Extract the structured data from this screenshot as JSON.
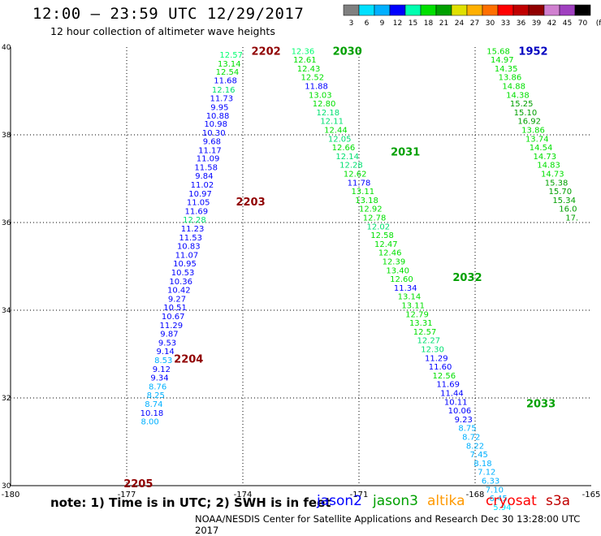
{
  "title": "12:00 – 23:59 UTC 12/29/2017",
  "subtitle": "12 hour collection of altimeter wave heights",
  "colorbar": {
    "labels": [
      "3",
      "6",
      "9",
      "12",
      "15",
      "18",
      "21",
      "24",
      "27",
      "30",
      "33",
      "36",
      "39",
      "42",
      "45",
      "70",
      "(ft)"
    ],
    "colors": [
      "#808080",
      "#00e0ff",
      "#00b0ff",
      "#0000ff",
      "#00ffb0",
      "#00e000",
      "#00a000",
      "#e0e000",
      "#ffb000",
      "#ff7000",
      "#ff0000",
      "#c00000",
      "#900000",
      "#d080d0",
      "#a040c0",
      "#000000"
    ]
  },
  "note": "note:  1) Time is in UTC;  2) SWH is in feet",
  "satellites": [
    {
      "name": "jason2",
      "color": "#0000ff"
    },
    {
      "name": "jason3",
      "color": "#00a000"
    },
    {
      "name": "altika",
      "color": "#ff9900"
    },
    {
      "name": "cryosat",
      "color": "#ff0000"
    },
    {
      "name": "s3a",
      "color": "#c00000"
    }
  ],
  "credit": "NOAA/NESDIS Center for Satellite Applications and Research   Dec 30 13:28:00 UTC 2017",
  "chart_data": {
    "type": "scatter",
    "xlim": [
      -180,
      -165
    ],
    "ylim": [
      30,
      40
    ],
    "x_ticks": [
      "-180",
      "-177",
      "-174",
      "-171",
      "-168",
      "-165"
    ],
    "y_ticks": [
      "30",
      "32",
      "34",
      "36",
      "38",
      "40"
    ],
    "grid": true,
    "track_labels": [
      {
        "text": "2202",
        "x": -173.4,
        "y": 39.92,
        "color": "#900000"
      },
      {
        "text": "2203",
        "x": -173.8,
        "y": 36.48,
        "color": "#900000"
      },
      {
        "text": "2204",
        "x": -175.4,
        "y": 32.9,
        "color": "#900000"
      },
      {
        "text": "2205",
        "x": -176.7,
        "y": 30.06,
        "color": "#900000"
      },
      {
        "text": "2030",
        "x": -171.3,
        "y": 39.92,
        "color": "#00a000"
      },
      {
        "text": "2031",
        "x": -169.8,
        "y": 37.62,
        "color": "#00a000"
      },
      {
        "text": "2032",
        "x": -168.2,
        "y": 34.76,
        "color": "#00a000"
      },
      {
        "text": "2033",
        "x": -166.3,
        "y": 31.88,
        "color": "#00a000"
      },
      {
        "text": "1952",
        "x": -166.5,
        "y": 39.92,
        "color": "#0000c0"
      }
    ],
    "series": [
      {
        "name": "jason2",
        "points": [
          {
            "x": -174.3,
            "y": 39.83,
            "v": "12.57",
            "c": "#00ff70"
          },
          {
            "x": -174.35,
            "y": 39.63,
            "v": "13.14",
            "c": "#00e000"
          },
          {
            "x": -174.4,
            "y": 39.44,
            "v": "12.54",
            "c": "#00e000"
          },
          {
            "x": -174.45,
            "y": 39.25,
            "v": "11.68",
            "c": "#0000ff"
          },
          {
            "x": -174.5,
            "y": 39.04,
            "v": "12.16",
            "c": "#00e070"
          },
          {
            "x": -174.55,
            "y": 38.84,
            "v": "11.73",
            "c": "#0000ff"
          },
          {
            "x": -174.6,
            "y": 38.64,
            "v": "9.95",
            "c": "#0000ff"
          },
          {
            "x": -174.65,
            "y": 38.44,
            "v": "10.88",
            "c": "#0000ff"
          },
          {
            "x": -174.7,
            "y": 38.26,
            "v": "10.98",
            "c": "#0000ff"
          },
          {
            "x": -174.75,
            "y": 38.06,
            "v": "10.30",
            "c": "#0000ff"
          },
          {
            "x": -174.8,
            "y": 37.86,
            "v": "9.68",
            "c": "#0000ff"
          },
          {
            "x": -174.85,
            "y": 37.66,
            "v": "11.17",
            "c": "#0000ff"
          },
          {
            "x": -174.9,
            "y": 37.47,
            "v": "11.09",
            "c": "#0000ff"
          },
          {
            "x": -174.95,
            "y": 37.27,
            "v": "11.58",
            "c": "#0000ff"
          },
          {
            "x": -175.0,
            "y": 37.07,
            "v": "9.84",
            "c": "#0000ff"
          },
          {
            "x": -175.05,
            "y": 36.87,
            "v": "11.02",
            "c": "#0000ff"
          },
          {
            "x": -175.1,
            "y": 36.67,
            "v": "10.97",
            "c": "#0000ff"
          },
          {
            "x": -175.15,
            "y": 36.47,
            "v": "11.05",
            "c": "#0000ff"
          },
          {
            "x": -175.2,
            "y": 36.27,
            "v": "11.69",
            "c": "#0000ff"
          },
          {
            "x": -175.25,
            "y": 36.07,
            "v": "12.28",
            "c": "#00e070"
          },
          {
            "x": -175.3,
            "y": 35.87,
            "v": "11.23",
            "c": "#0000ff"
          },
          {
            "x": -175.35,
            "y": 35.67,
            "v": "11.53",
            "c": "#0000ff"
          },
          {
            "x": -175.4,
            "y": 35.47,
            "v": "10.83",
            "c": "#0000ff"
          },
          {
            "x": -175.45,
            "y": 35.27,
            "v": "11.07",
            "c": "#0000ff"
          },
          {
            "x": -175.5,
            "y": 35.07,
            "v": "10.95",
            "c": "#0000ff"
          },
          {
            "x": -175.55,
            "y": 34.87,
            "v": "10.53",
            "c": "#0000ff"
          },
          {
            "x": -175.6,
            "y": 34.67,
            "v": "10.36",
            "c": "#0000ff"
          },
          {
            "x": -175.65,
            "y": 34.47,
            "v": "10.42",
            "c": "#0000ff"
          },
          {
            "x": -175.7,
            "y": 34.27,
            "v": "9.27",
            "c": "#0000ff"
          },
          {
            "x": -175.75,
            "y": 34.07,
            "v": "10.51",
            "c": "#0000ff"
          },
          {
            "x": -175.8,
            "y": 33.87,
            "v": "10.67",
            "c": "#0000ff"
          },
          {
            "x": -175.85,
            "y": 33.67,
            "v": "11.29",
            "c": "#0000ff"
          },
          {
            "x": -175.9,
            "y": 33.47,
            "v": "9.87",
            "c": "#0000ff"
          },
          {
            "x": -175.95,
            "y": 33.27,
            "v": "9.53",
            "c": "#0000ff"
          },
          {
            "x": -176.0,
            "y": 33.07,
            "v": "9.14",
            "c": "#0000ff"
          },
          {
            "x": -176.05,
            "y": 32.87,
            "v": "8.53",
            "c": "#00b0ff"
          },
          {
            "x": -176.1,
            "y": 32.67,
            "v": "9.12",
            "c": "#0000ff"
          },
          {
            "x": -176.15,
            "y": 32.47,
            "v": "9.34",
            "c": "#0000ff"
          },
          {
            "x": -176.2,
            "y": 32.27,
            "v": "8.76",
            "c": "#00b0ff"
          },
          {
            "x": -176.25,
            "y": 32.07,
            "v": "8.25",
            "c": "#00b0ff"
          },
          {
            "x": -176.3,
            "y": 31.87,
            "v": "8.74",
            "c": "#00b0ff"
          },
          {
            "x": -176.35,
            "y": 31.67,
            "v": "10.18",
            "c": "#0000ff"
          },
          {
            "x": -176.4,
            "y": 31.47,
            "v": "8.00",
            "c": "#00b0ff"
          }
        ]
      },
      {
        "name": "jason3",
        "points": [
          {
            "x": -172.45,
            "y": 39.92,
            "v": "12.36",
            "c": "#00ff70"
          },
          {
            "x": -172.4,
            "y": 39.72,
            "v": "12.61",
            "c": "#00e000"
          },
          {
            "x": -172.3,
            "y": 39.52,
            "v": "12.43",
            "c": "#00e000"
          },
          {
            "x": -172.2,
            "y": 39.32,
            "v": "12.52",
            "c": "#00e000"
          },
          {
            "x": -172.1,
            "y": 39.12,
            "v": "11.88",
            "c": "#0000ff"
          },
          {
            "x": -172.0,
            "y": 38.92,
            "v": "13.03",
            "c": "#00e000"
          },
          {
            "x": -171.9,
            "y": 38.72,
            "v": "12.80",
            "c": "#00e000"
          },
          {
            "x": -171.8,
            "y": 38.52,
            "v": "12.18",
            "c": "#00e070"
          },
          {
            "x": -171.7,
            "y": 38.32,
            "v": "12.11",
            "c": "#00e070"
          },
          {
            "x": -171.6,
            "y": 38.12,
            "v": "12.44",
            "c": "#00e000"
          },
          {
            "x": -171.5,
            "y": 37.92,
            "v": "12.05",
            "c": "#00e070"
          },
          {
            "x": -171.4,
            "y": 37.72,
            "v": "12.66",
            "c": "#00e000"
          },
          {
            "x": -171.3,
            "y": 37.52,
            "v": "12.14",
            "c": "#00e070"
          },
          {
            "x": -171.2,
            "y": 37.32,
            "v": "12.28",
            "c": "#00e070"
          },
          {
            "x": -171.1,
            "y": 37.12,
            "v": "12.62",
            "c": "#00e000"
          },
          {
            "x": -171.0,
            "y": 36.92,
            "v": "11.78",
            "c": "#0000ff"
          },
          {
            "x": -170.9,
            "y": 36.72,
            "v": "13.11",
            "c": "#00e000"
          },
          {
            "x": -170.8,
            "y": 36.52,
            "v": "13.18",
            "c": "#00e000"
          },
          {
            "x": -170.7,
            "y": 36.32,
            "v": "12.92",
            "c": "#00e000"
          },
          {
            "x": -170.6,
            "y": 36.12,
            "v": "12.78",
            "c": "#00e000"
          },
          {
            "x": -170.5,
            "y": 35.92,
            "v": "12.02",
            "c": "#00e070"
          },
          {
            "x": -170.4,
            "y": 35.72,
            "v": "12.58",
            "c": "#00e000"
          },
          {
            "x": -170.3,
            "y": 35.52,
            "v": "12.47",
            "c": "#00e000"
          },
          {
            "x": -170.2,
            "y": 35.32,
            "v": "12.46",
            "c": "#00e000"
          },
          {
            "x": -170.1,
            "y": 35.12,
            "v": "12.39",
            "c": "#00e000"
          },
          {
            "x": -170.0,
            "y": 34.92,
            "v": "13.40",
            "c": "#00e000"
          },
          {
            "x": -169.9,
            "y": 34.72,
            "v": "12.60",
            "c": "#00e000"
          },
          {
            "x": -169.8,
            "y": 34.52,
            "v": "11.34",
            "c": "#0000ff"
          },
          {
            "x": -169.7,
            "y": 34.32,
            "v": "13.14",
            "c": "#00e000"
          },
          {
            "x": -169.6,
            "y": 34.12,
            "v": "13.11",
            "c": "#00e000"
          },
          {
            "x": -169.5,
            "y": 33.92,
            "v": "12.79",
            "c": "#00e000"
          },
          {
            "x": -169.4,
            "y": 33.72,
            "v": "13.31",
            "c": "#00e000"
          },
          {
            "x": -169.3,
            "y": 33.52,
            "v": "12.57",
            "c": "#00e000"
          },
          {
            "x": -169.2,
            "y": 33.32,
            "v": "12.27",
            "c": "#00e070"
          },
          {
            "x": -169.1,
            "y": 33.12,
            "v": "12.30",
            "c": "#00e070"
          },
          {
            "x": -169.0,
            "y": 32.92,
            "v": "11.29",
            "c": "#0000ff"
          },
          {
            "x": -168.9,
            "y": 32.72,
            "v": "11.60",
            "c": "#0000ff"
          },
          {
            "x": -168.8,
            "y": 32.52,
            "v": "12.56",
            "c": "#00e000"
          },
          {
            "x": -168.7,
            "y": 32.32,
            "v": "11.69",
            "c": "#0000ff"
          },
          {
            "x": -168.6,
            "y": 32.12,
            "v": "11.44",
            "c": "#0000ff"
          },
          {
            "x": -168.5,
            "y": 31.92,
            "v": "10.11",
            "c": "#0000ff"
          },
          {
            "x": -168.4,
            "y": 31.72,
            "v": "10.06",
            "c": "#0000ff"
          },
          {
            "x": -168.3,
            "y": 31.52,
            "v": "9.23",
            "c": "#0000ff"
          },
          {
            "x": -168.2,
            "y": 31.32,
            "v": "8.75",
            "c": "#00b0ff"
          },
          {
            "x": -168.1,
            "y": 31.12,
            "v": "8.72",
            "c": "#00b0ff"
          },
          {
            "x": -168.0,
            "y": 30.92,
            "v": "8.22",
            "c": "#00b0ff"
          },
          {
            "x": -167.9,
            "y": 30.72,
            "v": "7.45",
            "c": "#00b0ff"
          },
          {
            "x": -167.8,
            "y": 30.52,
            "v": "8.18",
            "c": "#00b0ff"
          },
          {
            "x": -167.7,
            "y": 30.32,
            "v": "7.12",
            "c": "#00b0ff"
          },
          {
            "x": -167.6,
            "y": 30.12,
            "v": "6.33",
            "c": "#00b0ff"
          },
          {
            "x": -167.5,
            "y": 29.92,
            "v": "7.10",
            "c": "#00b0ff"
          },
          {
            "x": -167.4,
            "y": 29.72,
            "v": "6.45",
            "c": "#00b0ff"
          },
          {
            "x": -167.3,
            "y": 29.52,
            "v": "5.94",
            "c": "#00e0ff"
          }
        ]
      },
      {
        "name": "track-1952",
        "points": [
          {
            "x": -167.4,
            "y": 39.92,
            "v": "15.68",
            "c": "#00e000"
          },
          {
            "x": -167.3,
            "y": 39.72,
            "v": "14.97",
            "c": "#00e000"
          },
          {
            "x": -167.2,
            "y": 39.52,
            "v": "14.35",
            "c": "#00e000"
          },
          {
            "x": -167.1,
            "y": 39.32,
            "v": "13.86",
            "c": "#00e000"
          },
          {
            "x": -167.0,
            "y": 39.12,
            "v": "14.88",
            "c": "#00e000"
          },
          {
            "x": -166.9,
            "y": 38.92,
            "v": "14.38",
            "c": "#00e000"
          },
          {
            "x": -166.8,
            "y": 38.72,
            "v": "15.25",
            "c": "#00a000"
          },
          {
            "x": -166.7,
            "y": 38.52,
            "v": "15.10",
            "c": "#00a000"
          },
          {
            "x": -166.6,
            "y": 38.32,
            "v": "16.92",
            "c": "#00a000"
          },
          {
            "x": -166.5,
            "y": 38.12,
            "v": "13.86",
            "c": "#00e000"
          },
          {
            "x": -166.4,
            "y": 37.92,
            "v": "13.74",
            "c": "#00e000"
          },
          {
            "x": -166.3,
            "y": 37.72,
            "v": "14.54",
            "c": "#00e000"
          },
          {
            "x": -166.2,
            "y": 37.52,
            "v": "14.73",
            "c": "#00e000"
          },
          {
            "x": -166.1,
            "y": 37.32,
            "v": "14.83",
            "c": "#00e000"
          },
          {
            "x": -166.0,
            "y": 37.12,
            "v": "14.73",
            "c": "#00e000"
          },
          {
            "x": -165.9,
            "y": 36.92,
            "v": "15.38",
            "c": "#00a000"
          },
          {
            "x": -165.8,
            "y": 36.72,
            "v": "15.70",
            "c": "#00a000"
          },
          {
            "x": -165.7,
            "y": 36.52,
            "v": "15.34",
            "c": "#00a000"
          },
          {
            "x": -165.6,
            "y": 36.32,
            "v": "16.0",
            "c": "#00a000"
          },
          {
            "x": -165.5,
            "y": 36.12,
            "v": "17.",
            "c": "#00a000"
          }
        ]
      }
    ]
  }
}
